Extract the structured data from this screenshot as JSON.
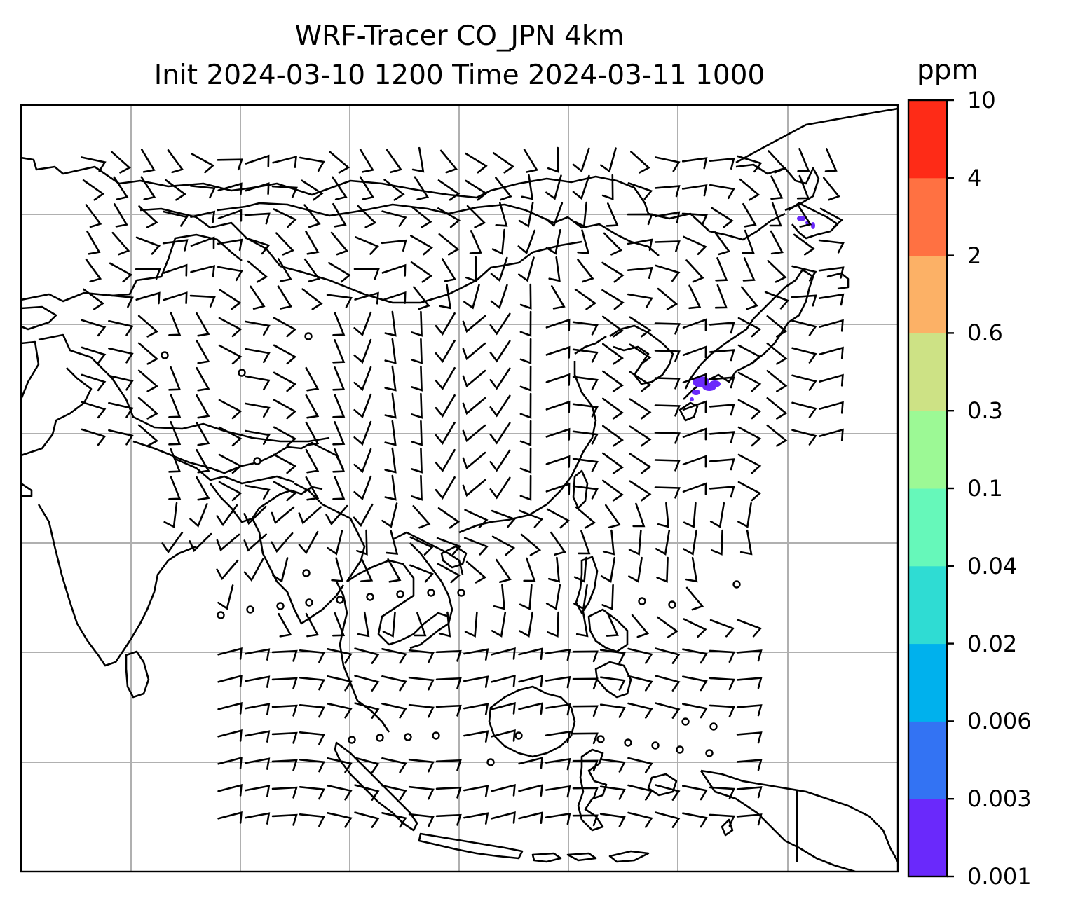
{
  "title": {
    "line1": "WRF-Tracer CO_JPN 4km",
    "line2": "Init 2024-03-10 1200 Time 2024-03-11 1000"
  },
  "colorbar": {
    "unit": "ppm",
    "tick_labels": [
      "0.001",
      "0.003",
      "0.006",
      "0.02",
      "0.04",
      "0.1",
      "0.3",
      "0.6",
      "2",
      "4",
      "10"
    ],
    "colors": [
      "#6a29fb",
      "#3373f3",
      "#00b1ed",
      "#2fdcd3",
      "#66f8ba",
      "#9cf995",
      "#cde285",
      "#fcb166",
      "#ff7142",
      "#fe2b17"
    ]
  },
  "map": {
    "gridlines": true,
    "wind_barbs": true,
    "calm_markers": true,
    "tracer_hotspots": [
      {
        "region": "Tokyo area",
        "color": "#6a29fb"
      },
      {
        "region": "Hokkaido",
        "color": "#6a29fb"
      }
    ]
  }
}
